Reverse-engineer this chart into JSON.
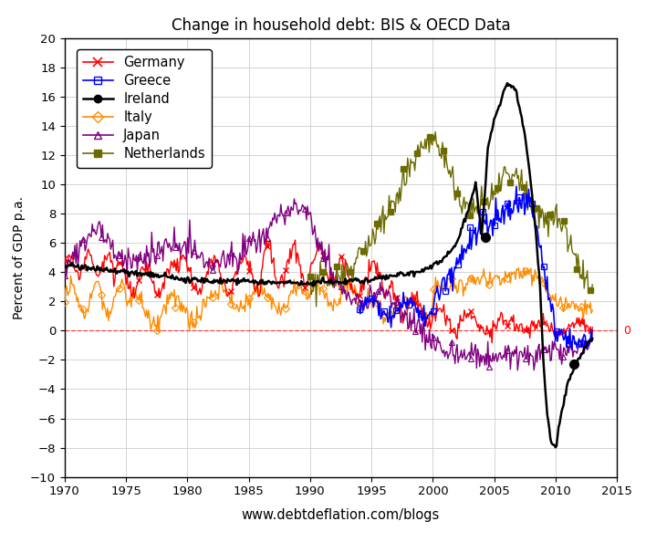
{
  "title": "Change in household debt: BIS & OECD Data",
  "xlabel": "www.debtdeflation.com/blogs",
  "ylabel": "Percent of GDP p.a.",
  "ylim": [
    -10,
    20
  ],
  "xlim": [
    1970,
    2015
  ],
  "yticks": [
    -10,
    -8,
    -6,
    -4,
    -2,
    0,
    2,
    4,
    6,
    8,
    10,
    12,
    14,
    16,
    18,
    20
  ],
  "ytick_labels": [
    "−10",
    "−8",
    "−6",
    "−4",
    "−2",
    "0",
    "2",
    "4",
    "6",
    "8",
    "10",
    "12",
    "14",
    "16",
    "18",
    "20"
  ],
  "xticks": [
    1970,
    1975,
    1980,
    1985,
    1990,
    1995,
    2000,
    2005,
    2010,
    2015
  ],
  "background_color": "#ffffff",
  "grid_color": "#cccccc",
  "series": {
    "Germany": {
      "color": "#ff0000",
      "linewidth": 1.0
    },
    "Greece": {
      "color": "#0000ff",
      "linewidth": 1.2
    },
    "Ireland": {
      "color": "#000000",
      "linewidth": 1.8
    },
    "Italy": {
      "color": "#ff8c00",
      "linewidth": 1.0
    },
    "Japan": {
      "color": "#800080",
      "linewidth": 1.0
    },
    "Netherlands": {
      "color": "#6b6b00",
      "linewidth": 1.0
    }
  },
  "zero_line_color": "#ff0000",
  "zero_line_style": "--",
  "zero_label": "0",
  "ireland_dot1_x": 2004.3,
  "ireland_dot1_y": 6.4,
  "ireland_dot2_x": 2011.5,
  "ireland_dot2_y": -2.3
}
